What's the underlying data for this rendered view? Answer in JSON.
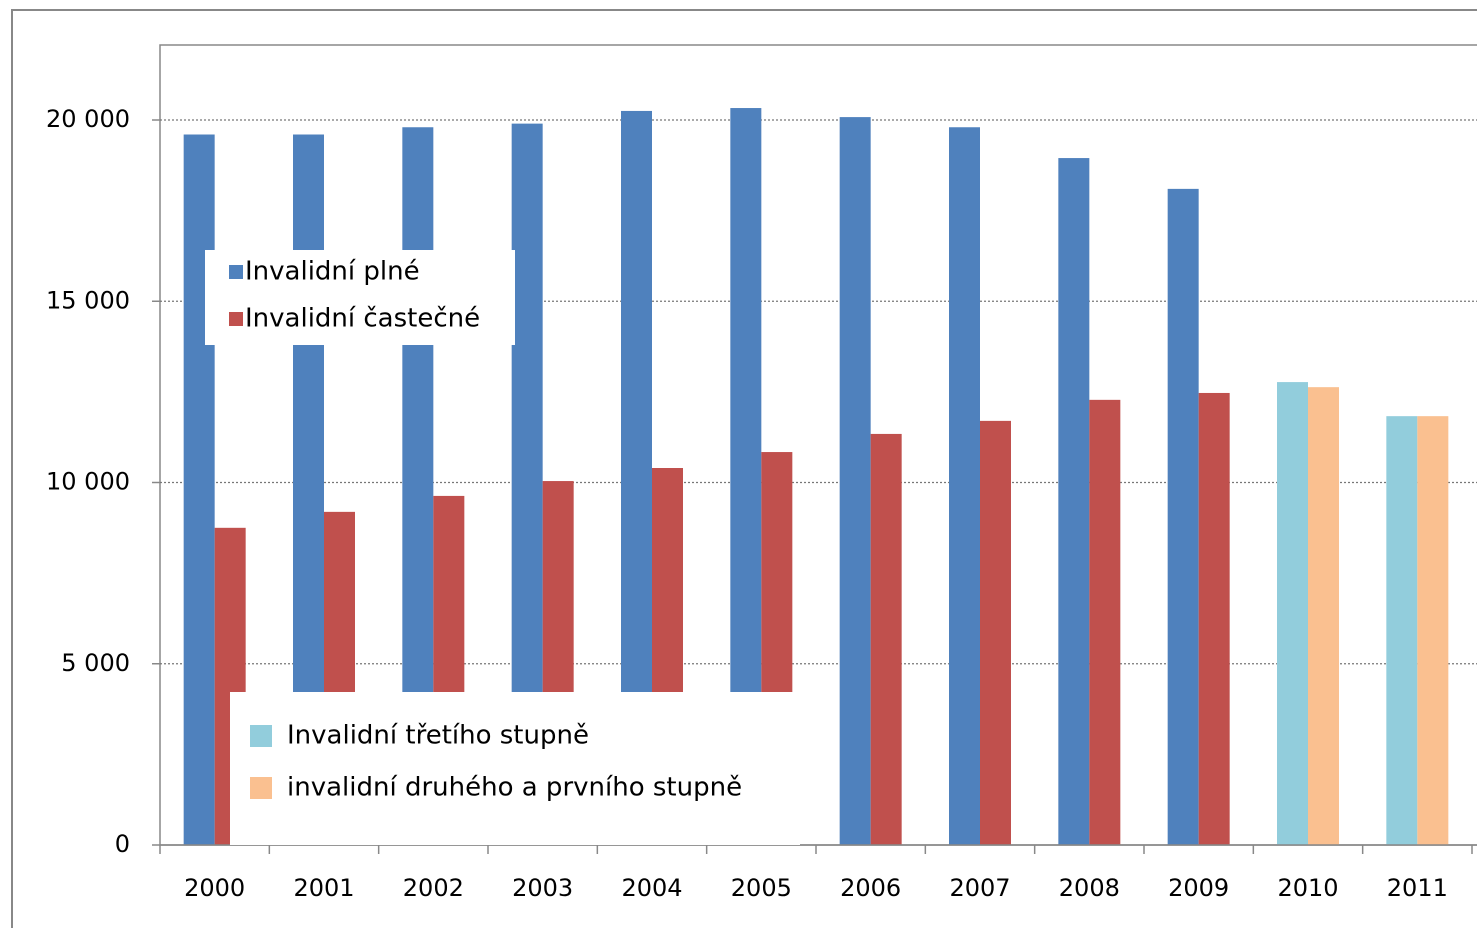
{
  "chart_data": {
    "type": "bar",
    "categories": [
      "2000",
      "2001",
      "2002",
      "2003",
      "2004",
      "2005",
      "2006",
      "2007",
      "2008",
      "2009",
      "2010",
      "2011"
    ],
    "series": [
      {
        "name": "Invalidní plné",
        "color": "#4f81bd",
        "values": [
          19600,
          19600,
          19800,
          19900,
          20250,
          20330,
          20080,
          19800,
          18950,
          18100,
          null,
          null
        ]
      },
      {
        "name": "Invalidní častečné",
        "color": "#c0504d",
        "values": [
          8750,
          9190,
          9630,
          10040,
          10400,
          10840,
          11340,
          11700,
          12280,
          12470,
          null,
          null
        ]
      },
      {
        "name": "Invalidní třetího  stupně",
        "color": "#92cddc",
        "values": [
          null,
          null,
          null,
          null,
          null,
          null,
          null,
          null,
          null,
          null,
          12770,
          11830
        ]
      },
      {
        "name": "invalidní druhého a prvního stupně",
        "color": "#fac090",
        "values": [
          null,
          null,
          null,
          null,
          null,
          null,
          null,
          null,
          null,
          null,
          12630,
          11830
        ]
      }
    ],
    "ylim": [
      0,
      22000
    ],
    "yticks": [
      0,
      {
        "value": 5000,
        "label": "5 000"
      },
      {
        "value": 10000,
        "label": "10 000"
      },
      {
        "value": 15000,
        "label": "15 000"
      },
      {
        "value": 20000,
        "label": "20 000"
      }
    ],
    "grid": true
  }
}
